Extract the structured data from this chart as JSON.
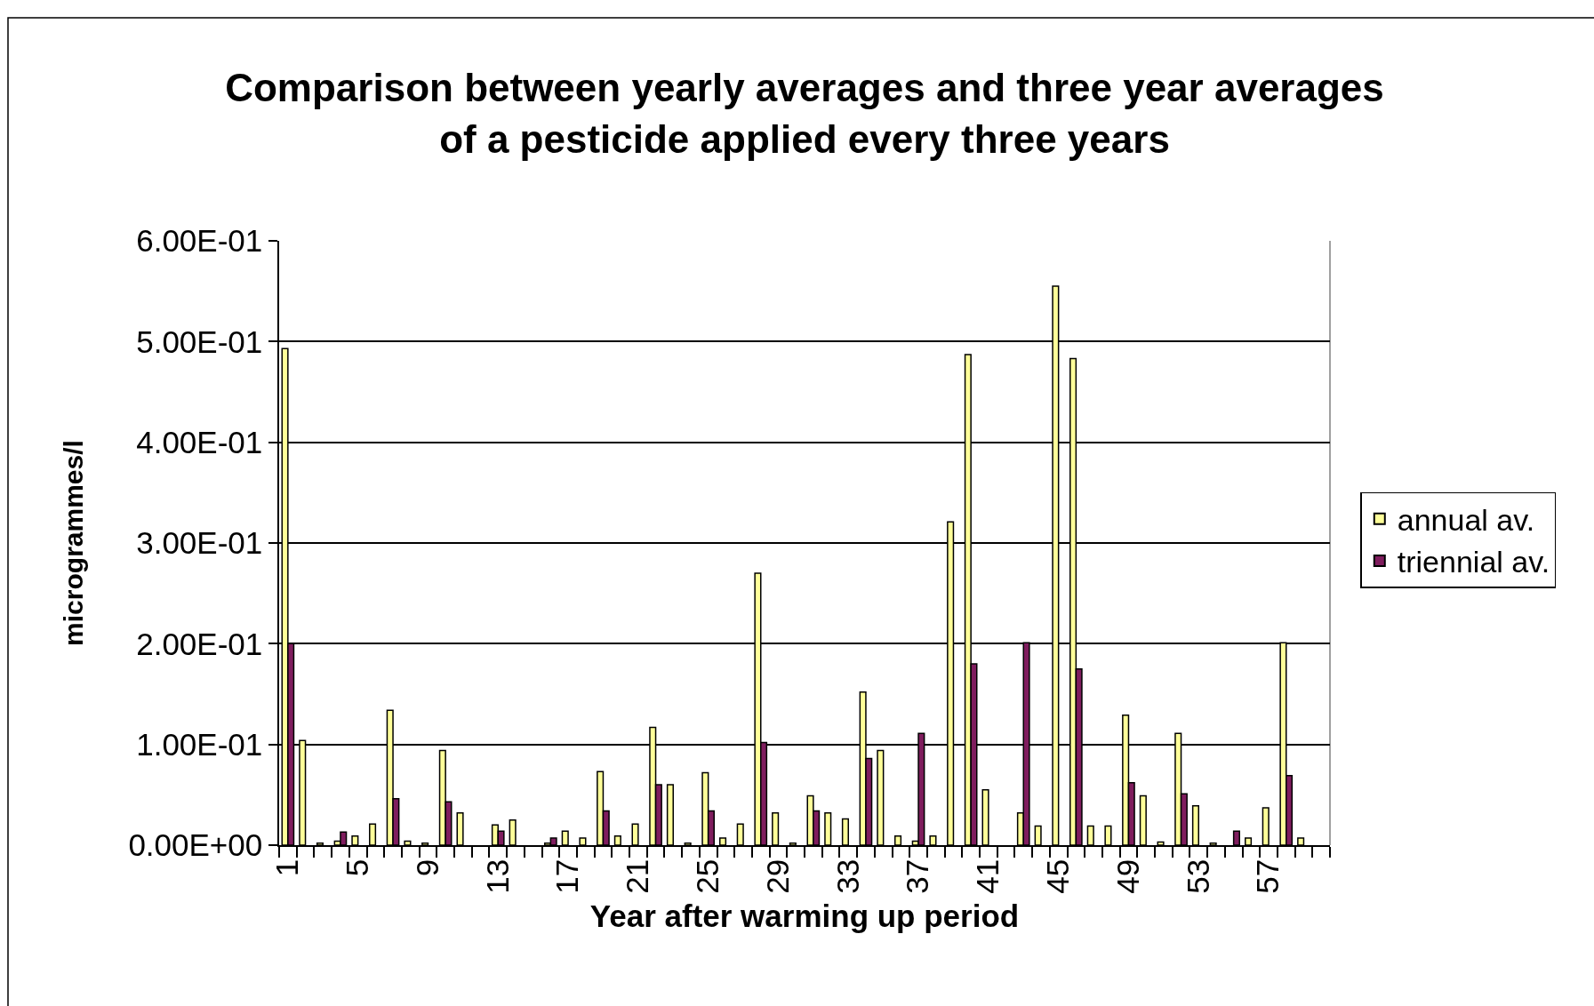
{
  "chart_data": {
    "type": "bar",
    "title": "Comparison between yearly averages and three year averages\nof a pesticide applied every three years",
    "xlabel": "Year after warming up period",
    "ylabel": "microgrammes/l",
    "categories": [
      "1",
      null,
      null,
      null,
      "5",
      null,
      null,
      null,
      "9",
      null,
      null,
      null,
      "13",
      null,
      null,
      null,
      "17",
      null,
      null,
      null,
      "21",
      null,
      null,
      null,
      "25",
      null,
      null,
      null,
      "29",
      null,
      null,
      null,
      "33",
      null,
      null,
      null,
      "37",
      null,
      null,
      null,
      "41",
      null,
      null,
      null,
      "45",
      null,
      null,
      null,
      "49",
      null,
      null,
      null,
      "53",
      null,
      null,
      null,
      "57",
      null,
      null,
      null
    ],
    "series": [
      {
        "name": "annual av.",
        "color": "#ffff99",
        "values": [
          0.493,
          0.104,
          0.002,
          0.004,
          0.009,
          0.021,
          0.134,
          0.004,
          0.002,
          0.094,
          0.032,
          null,
          0.02,
          0.025,
          null,
          0.002,
          0.014,
          0.007,
          0.073,
          0.009,
          0.021,
          0.117,
          0.06,
          0.002,
          0.072,
          0.007,
          0.021,
          0.27,
          0.032,
          0.002,
          0.049,
          0.032,
          0.026,
          0.152,
          0.094,
          0.009,
          0.004,
          0.009,
          0.321,
          0.487,
          0.055,
          null,
          0.032,
          0.019,
          0.555,
          0.483,
          0.019,
          0.019,
          0.129,
          0.049,
          0.003,
          0.111,
          0.039,
          0.002,
          null,
          0.007,
          0.037,
          0.201,
          0.007,
          null
        ]
      },
      {
        "name": "triennial av.",
        "color": "#7f1d5e",
        "values": [
          0.2,
          null,
          null,
          0.013,
          null,
          null,
          0.046,
          null,
          null,
          0.043,
          null,
          null,
          0.014,
          null,
          null,
          0.007,
          null,
          null,
          0.034,
          null,
          null,
          0.06,
          null,
          null,
          0.034,
          null,
          null,
          0.102,
          null,
          null,
          0.034,
          null,
          null,
          0.086,
          null,
          null,
          0.111,
          null,
          null,
          0.18,
          null,
          null,
          0.201,
          null,
          null,
          0.175,
          null,
          null,
          0.062,
          null,
          null,
          0.051,
          null,
          null,
          0.014,
          null,
          null,
          0.069,
          null,
          null
        ]
      }
    ],
    "ylim": [
      0,
      0.6
    ],
    "yticks": [
      {
        "value": 0,
        "label": "0.00E+00"
      },
      {
        "value": 0.1,
        "label": "1.00E-01"
      },
      {
        "value": 0.2,
        "label": "2.00E-01"
      },
      {
        "value": 0.3,
        "label": "3.00E-01"
      },
      {
        "value": 0.4,
        "label": "4.00E-01"
      },
      {
        "value": 0.5,
        "label": "5.00E-01"
      },
      {
        "value": 0.6,
        "label": "6.00E-01"
      }
    ],
    "grid": "y",
    "legend": "right"
  }
}
